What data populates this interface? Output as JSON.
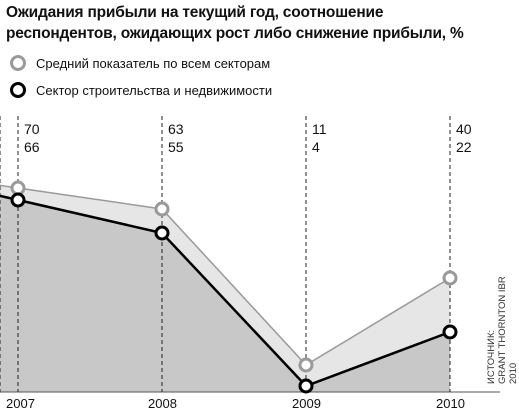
{
  "chart_data": {
    "type": "area",
    "title": "Ожидания прибыли на текущий год, соотношение\nреспондентов, ожидающих рост либо снижение прибыли, %",
    "categories": [
      "2007",
      "2008",
      "2009",
      "2010"
    ],
    "series": [
      {
        "name": "Средний показатель по всем секторам",
        "values": [
          70,
          63,
          11,
          40
        ],
        "color": "#9a9a9a",
        "fill": "#e6e6e6"
      },
      {
        "name": "Сектор строительства и недвижимости",
        "values": [
          66,
          55,
          4,
          22
        ],
        "color": "#000000",
        "fill": "#c8c8c8"
      }
    ],
    "ylim": [
      0,
      80
    ],
    "legend_position": "top-left",
    "source": "ИСТОЧНИК:\nGRANT THORNTON IBR 2010"
  }
}
